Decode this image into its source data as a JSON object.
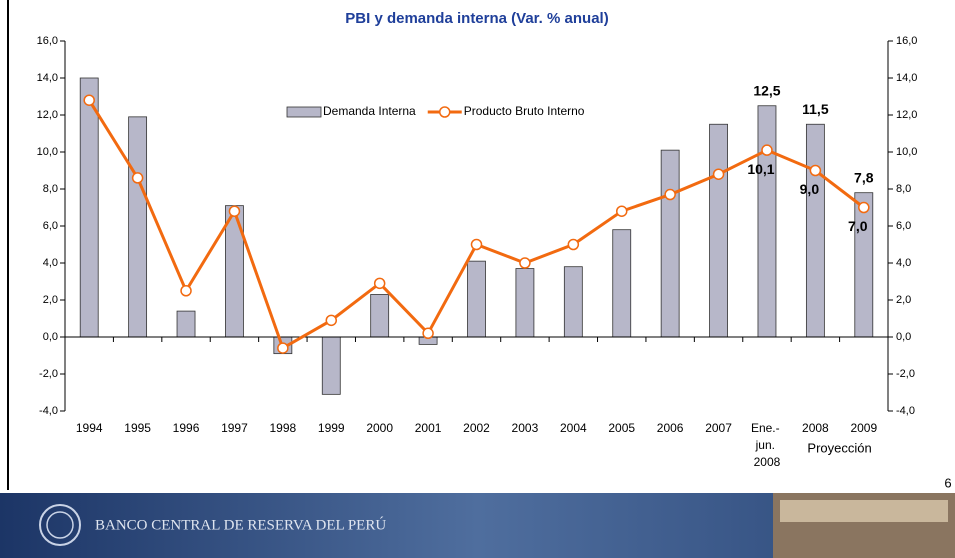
{
  "chart_data": {
    "type": "bar",
    "title": "PBI y demanda interna (Var. % anual)",
    "categories": [
      "1994",
      "1995",
      "1996",
      "1997",
      "1998",
      "1999",
      "2000",
      "2001",
      "2002",
      "2003",
      "2004",
      "2005",
      "2006",
      "2007",
      "Ene.- jun. 2008",
      "2008",
      "2009"
    ],
    "series": [
      {
        "name": "Demanda Interna",
        "type": "bar",
        "color": "#b7b7c9",
        "values": [
          14.0,
          11.9,
          1.4,
          7.1,
          -0.9,
          -3.1,
          2.3,
          -0.4,
          4.1,
          3.7,
          3.8,
          5.8,
          10.1,
          11.5,
          12.5,
          11.5,
          7.8
        ],
        "value_labels": [
          null,
          null,
          null,
          null,
          null,
          null,
          null,
          null,
          null,
          null,
          null,
          null,
          null,
          null,
          "12,5",
          "11,5",
          "7,8"
        ]
      },
      {
        "name": "Producto Bruto Interno",
        "type": "line",
        "color": "#f26a10",
        "values": [
          12.8,
          8.6,
          2.5,
          6.8,
          -0.6,
          0.9,
          2.9,
          0.2,
          5.0,
          4.0,
          5.0,
          6.8,
          7.7,
          8.8,
          10.1,
          9.0,
          7.0
        ],
        "value_labels": [
          null,
          null,
          null,
          null,
          null,
          null,
          null,
          null,
          null,
          null,
          null,
          null,
          null,
          null,
          "10,1",
          "9,0",
          "7,0"
        ]
      }
    ],
    "ylim": [
      -4,
      16
    ],
    "yticks": [
      {
        "value": -4,
        "label": "-4,0"
      },
      {
        "value": -2,
        "label": "-2,0"
      },
      {
        "value": 0,
        "label": "0,0"
      },
      {
        "value": 2,
        "label": "2,0"
      },
      {
        "value": 4,
        "label": "4,0"
      },
      {
        "value": 6,
        "label": "6,0"
      },
      {
        "value": 8,
        "label": "8,0"
      },
      {
        "value": 10,
        "label": "10,0"
      },
      {
        "value": 12,
        "label": "12,0"
      },
      {
        "value": 14,
        "label": "14,0"
      },
      {
        "value": 16,
        "label": "16,0"
      }
    ],
    "y2lim": [
      -4,
      16
    ],
    "y2ticks": [
      {
        "value": -4,
        "label": "-4,0"
      },
      {
        "value": -2,
        "label": "-2,0"
      },
      {
        "value": 0,
        "label": "0,0"
      },
      {
        "value": 2,
        "label": "2,0"
      },
      {
        "value": 4,
        "label": "4,0"
      },
      {
        "value": 6,
        "label": "6,0"
      },
      {
        "value": 8,
        "label": "8,0"
      },
      {
        "value": 10,
        "label": "10,0"
      },
      {
        "value": 12,
        "label": "12,0"
      },
      {
        "value": 14,
        "label": "14,0"
      },
      {
        "value": 16,
        "label": "16,0"
      }
    ],
    "annotation": "Proyección",
    "legend": "top-center"
  },
  "page_number": "6",
  "footer": "BANCO CENTRAL DE RESERVA DEL PERÚ"
}
